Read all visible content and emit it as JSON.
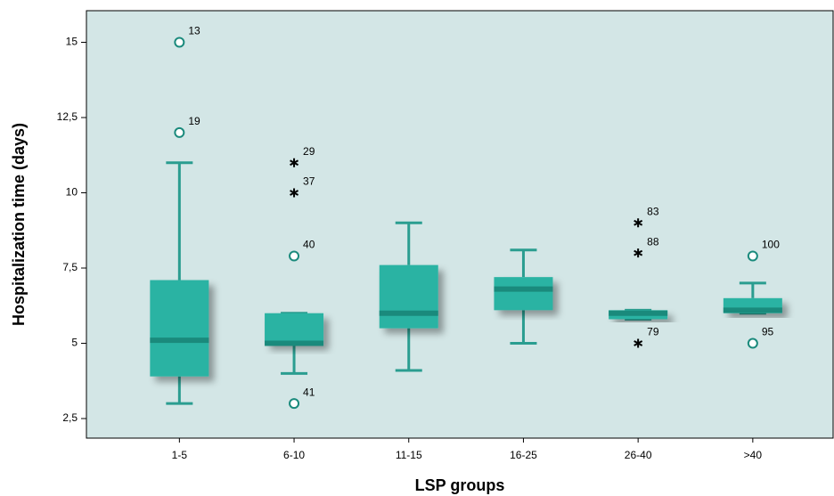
{
  "chart_data": {
    "type": "box",
    "y_label": "Hospitalization time (days)",
    "x_label": "LSP groups",
    "categories": [
      "1-5",
      "6-10",
      "11-15",
      "16-25",
      "26-40",
      ">40"
    ],
    "boxes": [
      {
        "min": 3,
        "q1": 3.9,
        "median": 5.1,
        "q3": 7.1,
        "max": 11,
        "outliers": [
          {
            "value": 15,
            "case": "13",
            "marker": "circle"
          },
          {
            "value": 12,
            "case": "19",
            "marker": "circle"
          }
        ]
      },
      {
        "min": 4,
        "q1": 4.95,
        "median": 5,
        "q3": 6,
        "max": 6,
        "outliers": [
          {
            "value": 11,
            "case": "29",
            "marker": "star"
          },
          {
            "value": 10,
            "case": "37",
            "marker": "star"
          },
          {
            "value": 7.9,
            "case": "40",
            "marker": "circle"
          },
          {
            "value": 3,
            "case": "41",
            "marker": "circle"
          }
        ]
      },
      {
        "min": 4.1,
        "q1": 5.5,
        "median": 6,
        "q3": 7.6,
        "max": 9,
        "outliers": []
      },
      {
        "min": 5,
        "q1": 6.1,
        "median": 6.8,
        "q3": 7.2,
        "max": 8.1,
        "outliers": []
      },
      {
        "min": 5.8,
        "q1": 5.8,
        "median": 6,
        "q3": 6.1,
        "max": 6.1,
        "outliers": [
          {
            "value": 9,
            "case": "83",
            "marker": "star"
          },
          {
            "value": 8,
            "case": "88",
            "marker": "star"
          },
          {
            "value": 5,
            "case": "79",
            "marker": "star"
          }
        ]
      },
      {
        "min": 6,
        "q1": 6,
        "median": 6.1,
        "q3": 6.5,
        "max": 7,
        "outliers": [
          {
            "value": 7.9,
            "case": "100",
            "marker": "circle"
          },
          {
            "value": 5,
            "case": "95",
            "marker": "circle"
          }
        ]
      }
    ],
    "color": "#2bb3a3",
    "whisker_color": "#2a9d90",
    "background": "#d3e6e6",
    "ylim": [
      1.85,
      16.05
    ],
    "yticks": [
      {
        "value": 2.5,
        "label": "2,5"
      },
      5,
      {
        "value": 7.5,
        "label": "7,5"
      },
      10,
      {
        "value": 12.5,
        "label": "12,5"
      },
      15
    ]
  }
}
